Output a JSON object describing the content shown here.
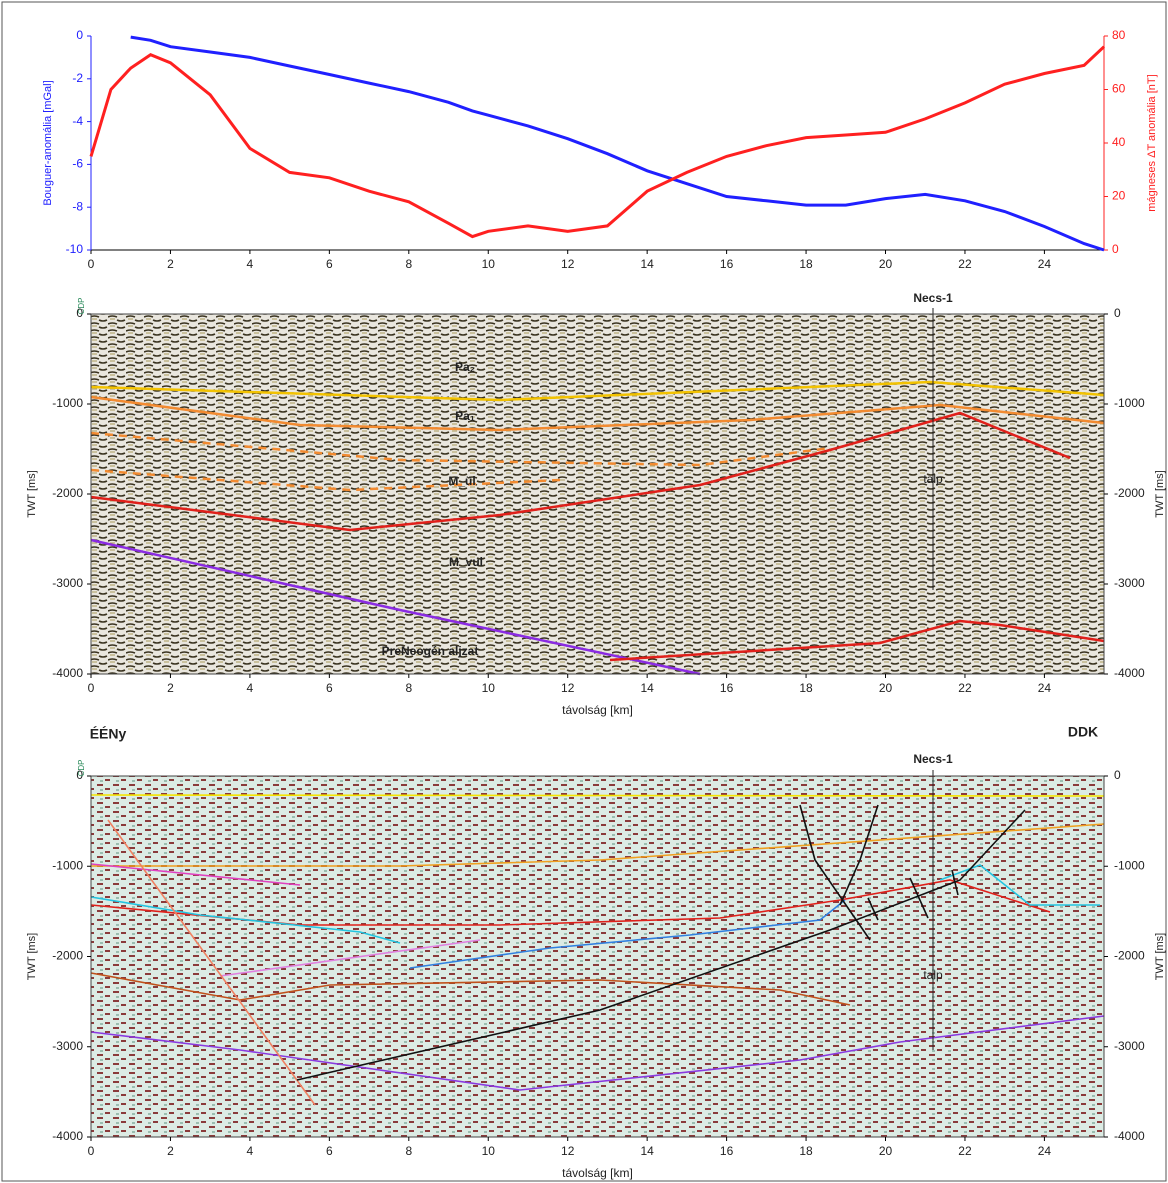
{
  "chart_data": [
    {
      "type": "line",
      "ylabel": "Bouguer-anomália [mGal]",
      "y2label": "mágneses ΔT anomália [nT]",
      "x": [
        0,
        0.5,
        1,
        1.5,
        2,
        3,
        4,
        5,
        6,
        7,
        8,
        9,
        9.6,
        10,
        11,
        12,
        13,
        14,
        15,
        16,
        17,
        18,
        19,
        20,
        21,
        22,
        23,
        24,
        25,
        25.5
      ],
      "xlim": [
        0,
        25.5
      ],
      "xticks": [
        0,
        2,
        4,
        6,
        8,
        10,
        12,
        14,
        16,
        18,
        20,
        22,
        24
      ],
      "ylim": [
        -10,
        0
      ],
      "yticks": [
        0,
        -2,
        -4,
        -6,
        -8,
        -10
      ],
      "y2lim": [
        0,
        80
      ],
      "y2ticks": [
        0,
        20,
        40,
        60,
        80
      ],
      "ycolor": "#2020ff",
      "y2color": "#ff2020",
      "series": [
        {
          "color": "#2020ff",
          "values": [
            null,
            null,
            -0.05,
            -0.2,
            -0.5,
            -0.75,
            -1,
            -1.4,
            -1.8,
            -2.2,
            -2.6,
            -3.1,
            -3.5,
            -3.7,
            -4.2,
            -4.8,
            -5.5,
            -6.3,
            -6.9,
            -7.5,
            -7.7,
            -7.9,
            -7.9,
            -7.6,
            -7.4,
            -7.7,
            -8.2,
            -8.9,
            -9.7,
            -10
          ]
        },
        {
          "color": "#ff2020",
          "axis": "y2",
          "values": [
            35,
            60,
            68,
            73,
            70,
            58,
            38,
            29,
            27,
            22,
            18,
            10,
            5,
            7,
            9,
            7,
            9,
            22,
            29,
            35,
            39,
            42,
            43,
            44,
            49,
            55,
            62,
            66,
            69,
            76
          ]
        }
      ]
    },
    {
      "type": "seismic",
      "xlabel": "távolság [km]",
      "ylabel": "TWT [ms]",
      "xlim": [
        0,
        25.5
      ],
      "xticks": [
        0,
        2,
        4,
        6,
        8,
        10,
        12,
        14,
        16,
        18,
        20,
        22,
        24
      ],
      "ylim": [
        -4000,
        0
      ],
      "yticks": [
        0,
        -1000,
        -2000,
        -3000,
        -4000
      ],
      "annotations": [
        "CDP",
        "Necs-1",
        "talp",
        "Pa₂",
        "Pa₁",
        "M_ül",
        "M_vul",
        "PreNeogén aljzat"
      ]
    },
    {
      "type": "seismic",
      "xlabel": "távolság [km]",
      "ylabel": "TWT [ms]",
      "xlim": [
        0,
        25.5
      ],
      "xticks": [
        0,
        2,
        4,
        6,
        8,
        10,
        12,
        14,
        16,
        18,
        20,
        22,
        24
      ],
      "ylim": [
        -4000,
        0
      ],
      "yticks": [
        0,
        -1000,
        -2000,
        -3000,
        -4000
      ],
      "annotations": [
        "ÉÉNy",
        "DDK",
        "CDP",
        "Necs-1",
        "talp"
      ]
    }
  ]
}
